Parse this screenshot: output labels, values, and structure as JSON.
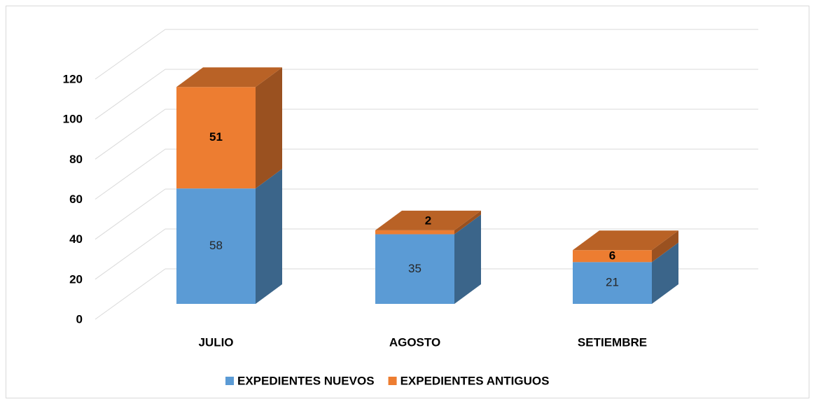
{
  "chart_data": {
    "type": "bar3d_stacked",
    "categories": [
      "JULIO",
      "AGOSTO",
      "SETIEMBRE"
    ],
    "series": [
      {
        "name": "EXPEDIENTES NUEVOS",
        "color": "#5b9bd5",
        "values": [
          58,
          35,
          21
        ]
      },
      {
        "name": "EXPEDIENTES ANTIGUOS",
        "color": "#ed7d31",
        "values": [
          51,
          2,
          6
        ]
      }
    ],
    "ylim": [
      0,
      120
    ],
    "yticks": [
      0,
      20,
      40,
      60,
      80,
      100,
      120
    ],
    "grid": true,
    "legend": "bottom"
  }
}
